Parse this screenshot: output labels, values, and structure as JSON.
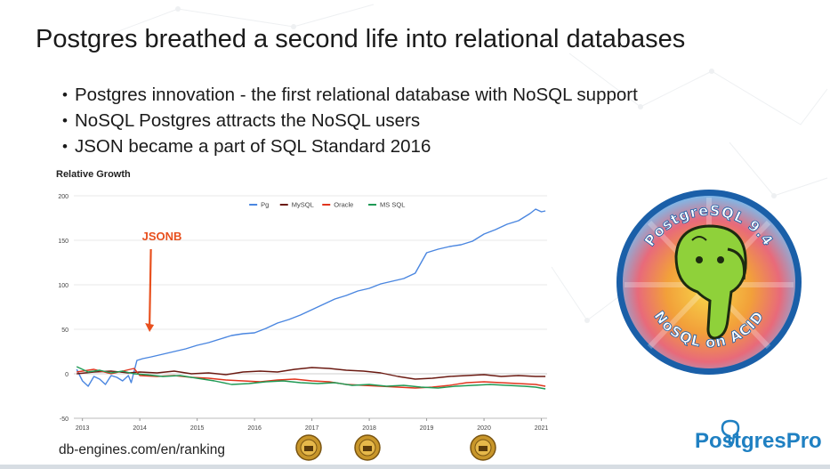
{
  "slide": {
    "title": "Postgres breathed a second life into relational databases",
    "bullets": [
      "Postgres innovation - the first relational database with NoSQL support",
      "NoSQL Postgres attracts the NoSQL users",
      "JSON became a part of SQL Standard 2016"
    ],
    "source": "db-engines.com/en/ranking",
    "brand": "PostgresPro",
    "logo_text_top": "PostgreSQL 9.4",
    "logo_text_bottom": "NoSQL on ACID"
  },
  "colors": {
    "brand": "#1f80c2",
    "annotation": "#e8501e",
    "logo_ring": "#1a5fa8",
    "elephant": "#8fd13a"
  },
  "icons": [
    "award-medal-icon",
    "elephant-logo-icon",
    "postgrespro-elephant-icon"
  ],
  "chart_data": {
    "type": "line",
    "title": "Relative Growth",
    "xlabel": "",
    "ylabel": "",
    "ylim": [
      -50,
      200
    ],
    "yticks": [
      -50,
      0,
      50,
      100,
      150,
      200
    ],
    "xlim": [
      2012.85,
      2021.1
    ],
    "xticks": [
      2013,
      2014,
      2015,
      2016,
      2017,
      2018,
      2019,
      2020,
      2021
    ],
    "grid": true,
    "legend_position": "top-center",
    "annotations": [
      {
        "text": "JSONB",
        "x": 2014.1,
        "y": 148,
        "arrow_to": {
          "x": 2014.17,
          "y": 47
        }
      }
    ],
    "series": [
      {
        "name": "Pg",
        "color": "#4a86e0",
        "points": [
          [
            2012.9,
            5
          ],
          [
            2013.0,
            -8
          ],
          [
            2013.1,
            -14
          ],
          [
            2013.2,
            -3
          ],
          [
            2013.3,
            -6
          ],
          [
            2013.4,
            -12
          ],
          [
            2013.5,
            -2
          ],
          [
            2013.6,
            -4
          ],
          [
            2013.7,
            -8
          ],
          [
            2013.8,
            -2
          ],
          [
            2013.85,
            -10
          ],
          [
            2013.95,
            15
          ],
          [
            2014.05,
            17
          ],
          [
            2014.2,
            19
          ],
          [
            2014.4,
            22
          ],
          [
            2014.6,
            25
          ],
          [
            2014.8,
            28
          ],
          [
            2015.0,
            32
          ],
          [
            2015.2,
            35
          ],
          [
            2015.4,
            39
          ],
          [
            2015.6,
            43
          ],
          [
            2015.8,
            45
          ],
          [
            2016.0,
            46
          ],
          [
            2016.2,
            51
          ],
          [
            2016.4,
            57
          ],
          [
            2016.6,
            61
          ],
          [
            2016.8,
            66
          ],
          [
            2017.0,
            72
          ],
          [
            2017.2,
            78
          ],
          [
            2017.4,
            84
          ],
          [
            2017.6,
            88
          ],
          [
            2017.8,
            93
          ],
          [
            2018.0,
            96
          ],
          [
            2018.2,
            101
          ],
          [
            2018.4,
            104
          ],
          [
            2018.6,
            107
          ],
          [
            2018.8,
            113
          ],
          [
            2019.0,
            136
          ],
          [
            2019.2,
            140
          ],
          [
            2019.4,
            143
          ],
          [
            2019.6,
            145
          ],
          [
            2019.8,
            149
          ],
          [
            2020.0,
            157
          ],
          [
            2020.2,
            162
          ],
          [
            2020.4,
            168
          ],
          [
            2020.6,
            172
          ],
          [
            2020.8,
            180
          ],
          [
            2020.9,
            185
          ],
          [
            2021.0,
            182
          ],
          [
            2021.07,
            183
          ]
        ]
      },
      {
        "name": "MySQL",
        "color": "#6b1a12",
        "points": [
          [
            2012.9,
            0
          ],
          [
            2013.2,
            2
          ],
          [
            2013.5,
            3
          ],
          [
            2013.8,
            1
          ],
          [
            2014.0,
            2
          ],
          [
            2014.3,
            1
          ],
          [
            2014.6,
            3
          ],
          [
            2014.9,
            0
          ],
          [
            2015.2,
            1
          ],
          [
            2015.5,
            -1
          ],
          [
            2015.8,
            2
          ],
          [
            2016.1,
            3
          ],
          [
            2016.4,
            2
          ],
          [
            2016.7,
            5
          ],
          [
            2017.0,
            7
          ],
          [
            2017.3,
            6
          ],
          [
            2017.6,
            4
          ],
          [
            2017.9,
            3
          ],
          [
            2018.2,
            1
          ],
          [
            2018.5,
            -3
          ],
          [
            2018.8,
            -6
          ],
          [
            2019.1,
            -5
          ],
          [
            2019.4,
            -3
          ],
          [
            2019.7,
            -2
          ],
          [
            2020.0,
            -1
          ],
          [
            2020.3,
            -3
          ],
          [
            2020.6,
            -2
          ],
          [
            2020.9,
            -3
          ],
          [
            2021.07,
            -3
          ]
        ]
      },
      {
        "name": "Oracle",
        "color": "#e0341d",
        "points": [
          [
            2012.9,
            2
          ],
          [
            2013.2,
            5
          ],
          [
            2013.5,
            0
          ],
          [
            2013.7,
            3
          ],
          [
            2013.9,
            6
          ],
          [
            2014.0,
            -2
          ],
          [
            2014.3,
            -3
          ],
          [
            2014.6,
            -2
          ],
          [
            2014.9,
            -4
          ],
          [
            2015.2,
            -5
          ],
          [
            2015.5,
            -7
          ],
          [
            2015.8,
            -8
          ],
          [
            2016.1,
            -9
          ],
          [
            2016.4,
            -7
          ],
          [
            2016.7,
            -6
          ],
          [
            2017.0,
            -8
          ],
          [
            2017.3,
            -9
          ],
          [
            2017.6,
            -12
          ],
          [
            2017.9,
            -13
          ],
          [
            2018.2,
            -14
          ],
          [
            2018.5,
            -15
          ],
          [
            2018.8,
            -16
          ],
          [
            2019.1,
            -15
          ],
          [
            2019.4,
            -13
          ],
          [
            2019.7,
            -10
          ],
          [
            2020.0,
            -9
          ],
          [
            2020.3,
            -10
          ],
          [
            2020.6,
            -11
          ],
          [
            2020.9,
            -12
          ],
          [
            2021.07,
            -14
          ]
        ]
      },
      {
        "name": "MS SQL",
        "color": "#1f9a55",
        "points": [
          [
            2012.9,
            8
          ],
          [
            2013.1,
            2
          ],
          [
            2013.3,
            4
          ],
          [
            2013.5,
            1
          ],
          [
            2013.7,
            3
          ],
          [
            2013.9,
            0
          ],
          [
            2014.1,
            -1
          ],
          [
            2014.4,
            -3
          ],
          [
            2014.7,
            -2
          ],
          [
            2015.0,
            -5
          ],
          [
            2015.3,
            -8
          ],
          [
            2015.6,
            -12
          ],
          [
            2015.9,
            -11
          ],
          [
            2016.2,
            -9
          ],
          [
            2016.5,
            -8
          ],
          [
            2016.8,
            -10
          ],
          [
            2017.1,
            -11
          ],
          [
            2017.4,
            -10
          ],
          [
            2017.7,
            -13
          ],
          [
            2018.0,
            -12
          ],
          [
            2018.3,
            -14
          ],
          [
            2018.6,
            -13
          ],
          [
            2018.9,
            -15
          ],
          [
            2019.2,
            -16
          ],
          [
            2019.5,
            -14
          ],
          [
            2019.8,
            -13
          ],
          [
            2020.1,
            -12
          ],
          [
            2020.4,
            -13
          ],
          [
            2020.7,
            -14
          ],
          [
            2020.9,
            -15
          ],
          [
            2021.07,
            -17
          ]
        ]
      }
    ]
  }
}
